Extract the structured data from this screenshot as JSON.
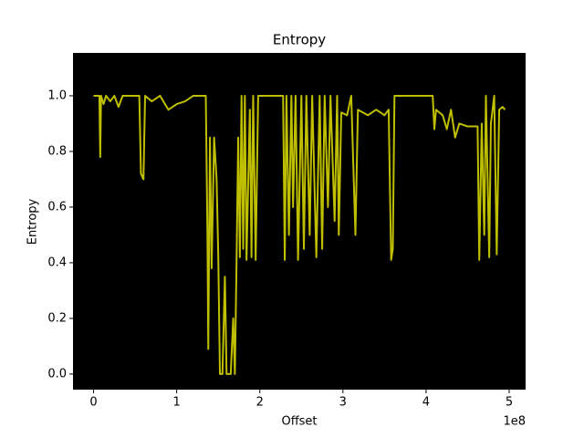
{
  "chart_data": {
    "type": "line",
    "title": "Entropy",
    "x_label": "Offset",
    "y_label": "Entropy",
    "x_offset_label": "1e8",
    "x": [
      0,
      7000000,
      8000000,
      9000000,
      12000000,
      15000000,
      20000000,
      25000000,
      30000000,
      35000000,
      45000000,
      55000000,
      57000000,
      60000000,
      62000000,
      70000000,
      80000000,
      90000000,
      100000000,
      110000000,
      120000000,
      135000000,
      137000000,
      138000000,
      140000000,
      142000000,
      145000000,
      148000000,
      150000000,
      152000000,
      155000000,
      158000000,
      160000000,
      165000000,
      168000000,
      170000000,
      172000000,
      174000000,
      176000000,
      178000000,
      180000000,
      182000000,
      184000000,
      188000000,
      190000000,
      192000000,
      195000000,
      198000000,
      210000000,
      228000000,
      230000000,
      232000000,
      235000000,
      238000000,
      240000000,
      243000000,
      246000000,
      250000000,
      253000000,
      256000000,
      260000000,
      263000000,
      268000000,
      272000000,
      275000000,
      278000000,
      282000000,
      285000000,
      290000000,
      293000000,
      295000000,
      298000000,
      305000000,
      310000000,
      315000000,
      318000000,
      330000000,
      340000000,
      350000000,
      355000000,
      358000000,
      360000000,
      362000000,
      380000000,
      400000000,
      408000000,
      410000000,
      412000000,
      420000000,
      425000000,
      430000000,
      435000000,
      440000000,
      450000000,
      462000000,
      464000000,
      467000000,
      470000000,
      472000000,
      476000000,
      478000000,
      482000000,
      485000000,
      488000000,
      492000000,
      495000000
    ],
    "series": [
      {
        "name": "Entropy",
        "color": "#bfbf00",
        "values": [
          1.0,
          1.0,
          0.78,
          1.0,
          0.97,
          1.0,
          0.98,
          1.0,
          0.96,
          1.0,
          1.0,
          1.0,
          0.72,
          0.7,
          1.0,
          0.98,
          1.0,
          0.95,
          0.97,
          0.98,
          1.0,
          1.0,
          0.5,
          0.09,
          0.85,
          0.38,
          0.85,
          0.7,
          0.43,
          0.0,
          0.0,
          0.35,
          0.0,
          0.0,
          0.2,
          0.0,
          0.4,
          0.85,
          0.42,
          1.0,
          0.45,
          1.0,
          0.41,
          0.95,
          0.42,
          1.0,
          0.41,
          1.0,
          1.0,
          1.0,
          0.41,
          1.0,
          0.5,
          1.0,
          0.6,
          1.0,
          0.41,
          1.0,
          0.45,
          1.0,
          0.5,
          1.0,
          0.42,
          1.0,
          0.45,
          1.0,
          0.6,
          1.0,
          0.55,
          1.0,
          0.5,
          0.94,
          0.93,
          1.0,
          0.5,
          0.95,
          0.93,
          0.95,
          0.93,
          0.95,
          0.41,
          0.45,
          1.0,
          1.0,
          1.0,
          1.0,
          0.88,
          0.95,
          0.93,
          0.88,
          0.95,
          0.85,
          0.9,
          0.89,
          0.89,
          0.41,
          0.9,
          0.5,
          1.0,
          0.42,
          0.9,
          1.0,
          0.43,
          0.95,
          0.96,
          0.95
        ]
      }
    ],
    "xlim": [
      -24750000,
      519750000
    ],
    "ylim": [
      -0.056,
      1.154
    ],
    "xticks": [
      0,
      {
        "value": 100000000,
        "label": "1"
      },
      {
        "value": 200000000,
        "label": "2"
      },
      {
        "value": 300000000,
        "label": "3"
      },
      {
        "value": 400000000,
        "label": "4"
      },
      {
        "value": 500000000,
        "label": "5"
      }
    ],
    "yticks": [
      {
        "value": 0,
        "label": "0.0"
      },
      0.2,
      0.4,
      0.6,
      0.8,
      {
        "value": 1,
        "label": "1.0"
      }
    ],
    "background": "#000000"
  }
}
